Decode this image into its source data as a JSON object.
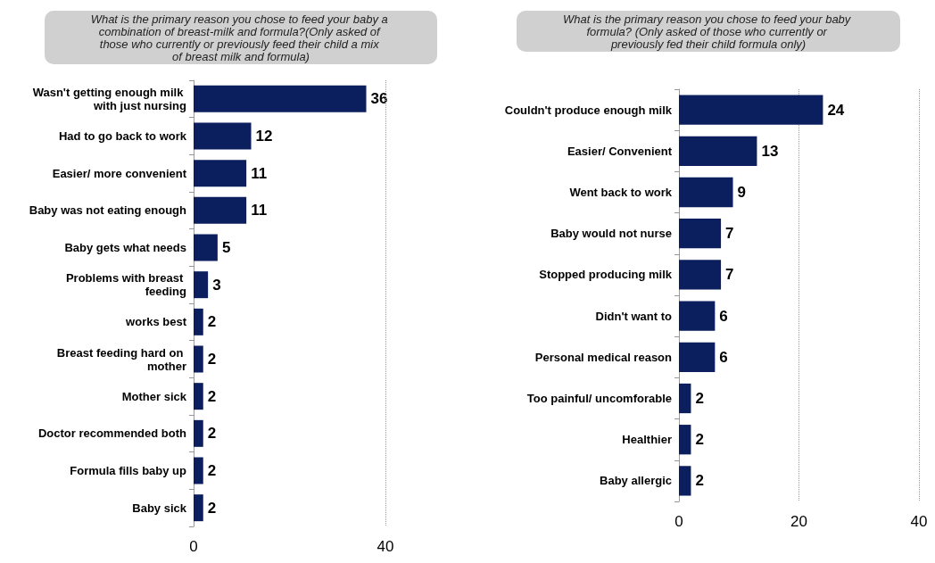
{
  "chart_data": [
    {
      "type": "bar",
      "orientation": "horizontal",
      "title": "What is the primary reason you chose to feed your baby a combination of breast-milk and formula?(Only asked of those who currently or previously feed their child a mix of breast milk and formula)",
      "categories": [
        "Wasn't getting enough milk with just nursing",
        "Had to go back to work",
        "Easier/ more convenient",
        "Baby was not eating enough",
        "Baby gets what needs",
        "Problems with breast feeding",
        "works best",
        "Breast feeding hard on mother",
        "Mother sick",
        "Doctor recommended both",
        "Formula fills baby up",
        "Baby sick"
      ],
      "values": [
        36,
        12,
        11,
        11,
        5,
        3,
        2,
        2,
        2,
        2,
        2,
        2
      ],
      "color": "#0b1f5e",
      "xlim": [
        0,
        40
      ],
      "xticks": [
        0,
        40
      ],
      "ref_lines": [
        {
          "axis": "x",
          "value": 40,
          "line_style": "dotted",
          "color": "#999999"
        }
      ],
      "data_labels": true
    },
    {
      "type": "bar",
      "orientation": "horizontal",
      "title": "What is the primary reason you chose to feed your baby formula? (Only asked of those who currently or previously fed their child formula only)",
      "categories": [
        "Couldn't produce enough milk",
        "Easier/ Convenient",
        "Went back to work",
        "Baby would not nurse",
        "Stopped producing milk",
        "Didn't want to",
        "Personal medical reason",
        "Too painful/ uncomforable",
        "Healthier",
        "Baby allergic"
      ],
      "values": [
        24,
        13,
        9,
        7,
        7,
        6,
        6,
        2,
        2,
        2
      ],
      "color": "#0b1f5e",
      "xlim": [
        0,
        40
      ],
      "xticks": [
        0,
        20,
        40
      ],
      "grid": "x",
      "data_labels": true
    }
  ]
}
